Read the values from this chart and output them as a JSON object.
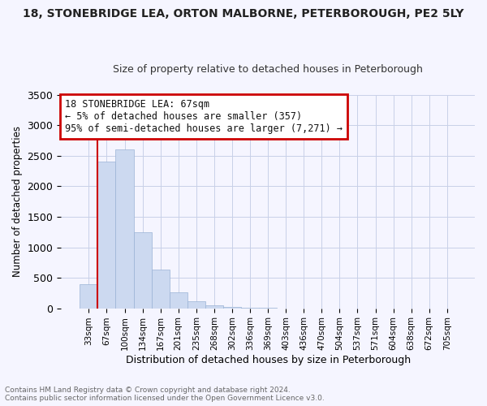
{
  "title": "18, STONEBRIDGE LEA, ORTON MALBORNE, PETERBOROUGH, PE2 5LY",
  "subtitle": "Size of property relative to detached houses in Peterborough",
  "xlabel": "Distribution of detached houses by size in Peterborough",
  "ylabel": "Number of detached properties",
  "bar_color": "#ccd9f0",
  "bar_edge_color": "#9ab3d5",
  "categories": [
    "33sqm",
    "67sqm",
    "100sqm",
    "134sqm",
    "167sqm",
    "201sqm",
    "235sqm",
    "268sqm",
    "302sqm",
    "336sqm",
    "369sqm",
    "403sqm",
    "436sqm",
    "470sqm",
    "504sqm",
    "537sqm",
    "571sqm",
    "604sqm",
    "638sqm",
    "672sqm",
    "705sqm"
  ],
  "bar_heights": [
    400,
    2400,
    2600,
    1250,
    640,
    260,
    110,
    50,
    20,
    5,
    2,
    0,
    0,
    0,
    0,
    0,
    0,
    0,
    0,
    0,
    0
  ],
  "ylim": [
    0,
    3500
  ],
  "yticks": [
    0,
    500,
    1000,
    1500,
    2000,
    2500,
    3000,
    3500
  ],
  "annotation_text": "18 STONEBRIDGE LEA: 67sqm\n← 5% of detached houses are smaller (357)\n95% of semi-detached houses are larger (7,271) →",
  "annotation_box_color": "#ffffff",
  "annotation_box_edge_color": "#cc0000",
  "footer_text": "Contains HM Land Registry data © Crown copyright and database right 2024.\nContains public sector information licensed under the Open Government Licence v3.0.",
  "highlight_bar_index": 1,
  "vline_x": 1.5,
  "background_color": "#f5f5ff",
  "grid_color": "#c8d0e8",
  "title_fontsize": 10,
  "subtitle_fontsize": 9
}
